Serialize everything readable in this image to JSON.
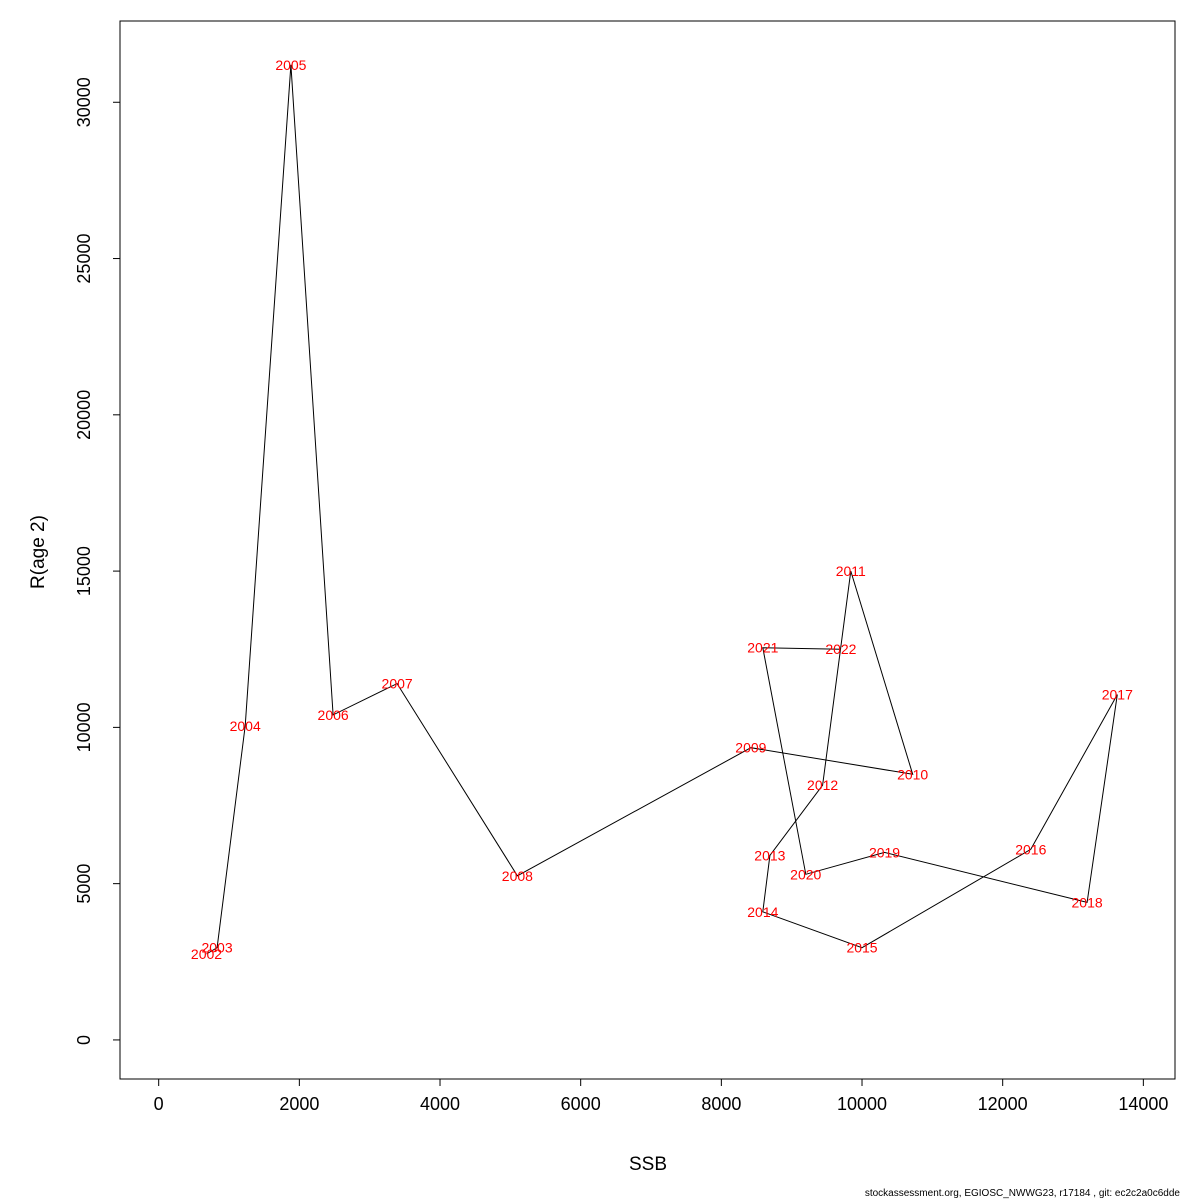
{
  "chart_data": {
    "type": "line",
    "xlabel": "SSB",
    "ylabel": "R(age 2)",
    "xlim": [
      -550,
      14450
    ],
    "ylim": [
      -1250,
      32600
    ],
    "x_ticks": [
      0,
      2000,
      4000,
      6000,
      8000,
      10000,
      12000,
      14000
    ],
    "y_ticks": [
      0,
      5000,
      10000,
      15000,
      20000,
      25000,
      30000
    ],
    "label_color": "#ff0000",
    "line_color": "#000000",
    "grid": false,
    "points": [
      {
        "year": "2002",
        "x": 680,
        "y": 2750
      },
      {
        "year": "2003",
        "x": 830,
        "y": 2950
      },
      {
        "year": "2004",
        "x": 1230,
        "y": 10050
      },
      {
        "year": "2005",
        "x": 1880,
        "y": 31200
      },
      {
        "year": "2006",
        "x": 2480,
        "y": 10400
      },
      {
        "year": "2007",
        "x": 3390,
        "y": 11400
      },
      {
        "year": "2008",
        "x": 5100,
        "y": 5250
      },
      {
        "year": "2009",
        "x": 8420,
        "y": 9350
      },
      {
        "year": "2010",
        "x": 10720,
        "y": 8500
      },
      {
        "year": "2011",
        "x": 9840,
        "y": 15000
      },
      {
        "year": "2012",
        "x": 9440,
        "y": 8150
      },
      {
        "year": "2013",
        "x": 8690,
        "y": 5900
      },
      {
        "year": "2014",
        "x": 8590,
        "y": 4100
      },
      {
        "year": "2015",
        "x": 10000,
        "y": 2950
      },
      {
        "year": "2016",
        "x": 12400,
        "y": 6100
      },
      {
        "year": "2017",
        "x": 13630,
        "y": 11050
      },
      {
        "year": "2018",
        "x": 13200,
        "y": 4400
      },
      {
        "year": "2019",
        "x": 10320,
        "y": 6000
      },
      {
        "year": "2020",
        "x": 9200,
        "y": 5300
      },
      {
        "year": "2021",
        "x": 8590,
        "y": 12550
      },
      {
        "year": "2022",
        "x": 9700,
        "y": 12500
      }
    ]
  },
  "footer": "stockassessment.org, EGIOSC_NWWG23, r17184 , git: ec2c2a0c6dde"
}
